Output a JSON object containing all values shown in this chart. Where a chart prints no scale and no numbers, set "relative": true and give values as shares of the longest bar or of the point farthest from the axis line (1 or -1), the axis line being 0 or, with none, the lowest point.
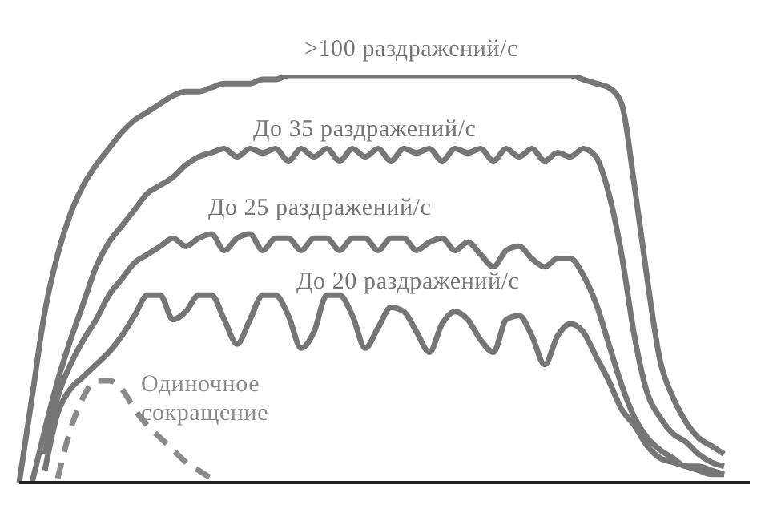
{
  "chart_data": {
    "type": "line",
    "relative": true,
    "categories": [
      null,
      null,
      null,
      null,
      null,
      null,
      null,
      null,
      null,
      null,
      null,
      null,
      null,
      null,
      null,
      null,
      null,
      null,
      null,
      null,
      null,
      null,
      null,
      null,
      null,
      null,
      null,
      null,
      null,
      null,
      null,
      null,
      null,
      null,
      null,
      null,
      null,
      null,
      null,
      null,
      null,
      null,
      null,
      null,
      null,
      null,
      null,
      null,
      null,
      null,
      null,
      null,
      null,
      null,
      null,
      null,
      null,
      null
    ],
    "series": [
      {
        "name": ">100 раздражений/с",
        "color": "#767676",
        "values": [
          0,
          0.21,
          0.42,
          0.56,
          0.66,
          0.73,
          0.78,
          0.82,
          0.86,
          0.89,
          0.91,
          0.93,
          0.95,
          0.96,
          0.96,
          0.97,
          0.98,
          0.98,
          0.98,
          0.99,
          0.99,
          1,
          1,
          1,
          1,
          1,
          1,
          1,
          1,
          1,
          1,
          1,
          1,
          1,
          1,
          1,
          1,
          1,
          1,
          1,
          1,
          1,
          1,
          1,
          0.99,
          0.98,
          0.97,
          0.93,
          0.73,
          0.5,
          0.3,
          0.21,
          0.15,
          0.11,
          0.09,
          0.07,
          null,
          null
        ]
      },
      {
        "name": "До 35 раздражений/с",
        "color": "#767676",
        "values": [
          null,
          0,
          0.13,
          0.25,
          0.35,
          0.44,
          0.53,
          0.59,
          0.63,
          0.67,
          0.71,
          0.73,
          0.75,
          0.78,
          0.8,
          0.81,
          0.82,
          0.8,
          0.82,
          0.81,
          0.82,
          0.79,
          0.82,
          0.8,
          0.82,
          0.79,
          0.82,
          0.8,
          0.82,
          0.79,
          0.82,
          0.81,
          0.82,
          0.79,
          0.82,
          0.81,
          0.82,
          0.79,
          0.82,
          0.8,
          0.82,
          0.79,
          0.81,
          0.8,
          0.82,
          0.8,
          0.71,
          0.56,
          0.36,
          0.22,
          0.16,
          0.12,
          0.1,
          0.07,
          0.05,
          0.04,
          null,
          null
        ]
      },
      {
        "name": "До 25 раздражений/с",
        "color": "#767676",
        "values": [
          null,
          null,
          0.07,
          0.21,
          0.29,
          0.35,
          0.4,
          0.46,
          0.5,
          0.54,
          0.56,
          0.58,
          0.6,
          0.58,
          0.6,
          0.61,
          0.57,
          0.6,
          0.61,
          0.57,
          0.6,
          0.6,
          0.57,
          0.6,
          0.6,
          0.57,
          0.6,
          0.6,
          0.57,
          0.6,
          0.6,
          0.57,
          0.59,
          0.6,
          0.57,
          0.59,
          0.56,
          0.53,
          0.57,
          0.58,
          0.55,
          0.53,
          0.55,
          0.55,
          0.51,
          0.44,
          0.34,
          0.24,
          0.16,
          0.11,
          0.08,
          0.06,
          0.04,
          0.04,
          0.03,
          0.02,
          null,
          null
        ]
      },
      {
        "name": "До 20 раздражений/с",
        "color": "#767676",
        "values": [
          null,
          null,
          0.03,
          0.17,
          0.23,
          0.26,
          0.29,
          0.32,
          0.36,
          0.41,
          0.46,
          0.46,
          0.4,
          0.42,
          0.46,
          0.46,
          0.4,
          0.34,
          0.4,
          0.46,
          0.46,
          0.41,
          0.33,
          0.37,
          0.46,
          0.46,
          0.41,
          0.33,
          0.38,
          0.43,
          0.42,
          0.37,
          0.32,
          0.39,
          0.42,
          0.4,
          0.35,
          0.32,
          0.4,
          0.41,
          0.36,
          0.29,
          0.36,
          0.39,
          0.37,
          0.31,
          0.25,
          0.18,
          0.14,
          0.09,
          0.06,
          0.05,
          0.04,
          0.03,
          0.02,
          0.02,
          null,
          null
        ]
      },
      {
        "name": "Одиночное сокращение",
        "color": "#8a8a8a",
        "line_style": "dashed",
        "values": [
          null,
          null,
          null,
          0.01,
          0.13,
          0.21,
          0.25,
          0.25,
          0.23,
          0.18,
          0.14,
          0.11,
          0.08,
          0.05,
          0.03,
          0.01,
          null,
          null,
          null,
          null,
          null,
          null,
          null,
          null,
          null,
          null,
          null,
          null,
          null,
          null,
          null,
          null,
          null,
          null,
          null,
          null,
          null,
          null,
          null,
          null,
          null,
          null,
          null,
          null,
          null,
          null,
          null,
          null,
          null,
          null,
          null,
          null,
          null,
          null,
          null,
          null,
          null,
          null
        ]
      }
    ]
  }
}
